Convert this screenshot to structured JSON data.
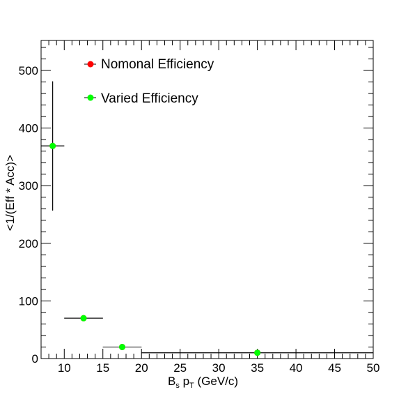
{
  "chart_data": {
    "type": "scatter",
    "title": "",
    "xlabel": {
      "main": "B",
      "sub": "s",
      "rest": " p",
      "sub2": "T",
      "tail": " (GeV/c)"
    },
    "ylabel": "<1/(Eff * Acc)>",
    "xlim": [
      7,
      50
    ],
    "ylim": [
      0,
      552
    ],
    "x_ticks": [
      10,
      15,
      20,
      25,
      30,
      35,
      40,
      45,
      50
    ],
    "y_ticks": [
      0,
      100,
      200,
      300,
      400,
      500
    ],
    "grid": false,
    "legend_position": "top-left",
    "series": [
      {
        "name": "Nomonal Efficiency",
        "color": "#ff0000",
        "points": [
          {
            "x": 8.5,
            "xlow": 7,
            "xhigh": 10,
            "y": 369,
            "ylow": 257,
            "yhigh": 481
          },
          {
            "x": 12.5,
            "xlow": 10,
            "xhigh": 15,
            "y": 70,
            "ylow": 70,
            "yhigh": 70
          },
          {
            "x": 17.5,
            "xlow": 15,
            "xhigh": 20,
            "y": 20,
            "ylow": 20,
            "yhigh": 20
          },
          {
            "x": 35,
            "xlow": 20,
            "xhigh": 50,
            "y": 10,
            "ylow": 10,
            "yhigh": 10
          }
        ]
      },
      {
        "name": "Varied Efficiency",
        "color": "#00ff00",
        "points": [
          {
            "x": 8.5,
            "xlow": 7,
            "xhigh": 10,
            "y": 369,
            "ylow": 257,
            "yhigh": 481
          },
          {
            "x": 12.5,
            "xlow": 10,
            "xhigh": 15,
            "y": 70,
            "ylow": 70,
            "yhigh": 70
          },
          {
            "x": 17.5,
            "xlow": 15,
            "xhigh": 20,
            "y": 20,
            "ylow": 20,
            "yhigh": 20
          },
          {
            "x": 35,
            "xlow": 20,
            "xhigh": 50,
            "y": 10,
            "ylow": 10,
            "yhigh": 10
          }
        ]
      }
    ]
  }
}
